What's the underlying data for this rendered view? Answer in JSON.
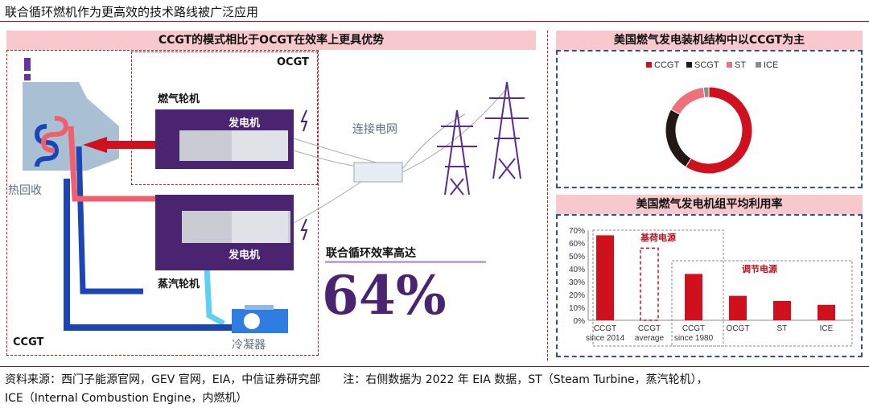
{
  "page_title": "联合循环燃机作为更高效的技术路线被广泛应用",
  "left_panel": {
    "header": "CCGT的模式相比于OCGT在效率上更具优势",
    "ocgt_label": "OCGT",
    "ccgt_label": "CCGT",
    "gas_turbine": "燃气轮机",
    "generator_top": "发电机",
    "generator_bottom": "发电机",
    "steam_turbine": "蒸汽轮机",
    "grid": "连接电网",
    "heat_recovery": "热回收",
    "condenser": "冷凝器",
    "efficiency_caption": "联合循环效率高达",
    "efficiency_value": "64%"
  },
  "donut_panel": {
    "header": "美国燃气发电装机结构中以CCGT为主"
  },
  "bar_panel": {
    "header": "美国燃气发电机组平均利用率",
    "baseload_label": "基荷电源",
    "peaking_label": "调节电源"
  },
  "chart_data": [
    {
      "type": "pie",
      "legend_position": "top",
      "categories": [
        "CCGT",
        "SCGT",
        "ST",
        "ICE"
      ],
      "values": [
        59,
        24,
        15,
        2
      ],
      "colors": [
        "#d0101d",
        "#231815",
        "#f0707a",
        "#8c8c8c"
      ]
    },
    {
      "type": "bar",
      "categories": [
        "CCGT since 2014",
        "CCGT average",
        "CCGT since 1980",
        "OCGT",
        "ST",
        "ICE"
      ],
      "tick_lines": [
        [
          "CCGT",
          "since 2014"
        ],
        [
          "CCGT",
          "average"
        ],
        [
          "CCGT",
          "since 1980"
        ],
        [
          "OCGT"
        ],
        [
          "ST"
        ],
        [
          "ICE"
        ]
      ],
      "values": [
        66,
        56,
        36,
        19,
        15,
        12
      ],
      "ylim": [
        0,
        70
      ],
      "yticks": [
        "0%",
        "10%",
        "20%",
        "30%",
        "40%",
        "50%",
        "60%",
        "70%"
      ],
      "color": "#d0101d"
    }
  ],
  "footer": {
    "line1": "资料来源：西门子能源官网，GEV 官网，EIA，中信证券研究部　　注：右侧数据为 2022 年 EIA 数据，ST（Steam Turbine，蒸汽轮机），",
    "line2": "ICE（Internal Combustion Engine，内燃机）"
  }
}
